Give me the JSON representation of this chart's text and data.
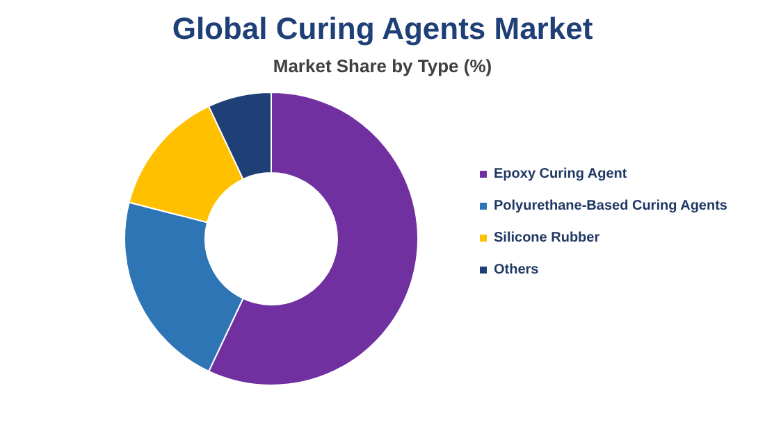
{
  "chart_data": {
    "type": "donut",
    "title": "Global Curing Agents Market",
    "subtitle": "Market Share by Type (%)",
    "categories": [
      "Epoxy Curing Agent",
      "Polyurethane-Based Curing Agents",
      "Silicone Rubber",
      "Others"
    ],
    "values": [
      57,
      22,
      14,
      7
    ],
    "colors": [
      "#7030a0",
      "#2e75b6",
      "#ffc000",
      "#1f3f77"
    ],
    "legend": "right"
  }
}
